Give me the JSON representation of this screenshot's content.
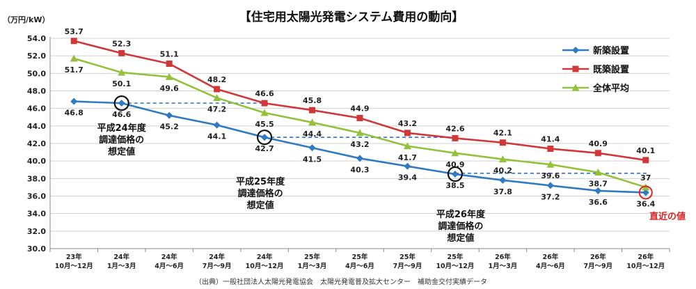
{
  "chart_data": {
    "type": "line",
    "title": "【住宅用太陽光発電システム費用の動向】",
    "ylabel": "（万円/kW）",
    "ylim": [
      30.0,
      54.0
    ],
    "ytick_step": 2.0,
    "grid": true,
    "legend_position": "top-right",
    "categories": [
      [
        "23年",
        "10月～12月"
      ],
      [
        "24年",
        "1月～3月"
      ],
      [
        "24年",
        "4月～6月"
      ],
      [
        "24年",
        "7月～9月"
      ],
      [
        "24年",
        "10月～12月"
      ],
      [
        "25年",
        "1月～3月"
      ],
      [
        "25年",
        "4月～6月"
      ],
      [
        "25年",
        "7月～9月"
      ],
      [
        "25年",
        "10月～12月"
      ],
      [
        "26年",
        "1月～3月"
      ],
      [
        "26年",
        "4月～6月"
      ],
      [
        "26年",
        "7月～9月"
      ],
      [
        "26年",
        "10月～12月"
      ]
    ],
    "series": [
      {
        "name": "新築設置",
        "color": "#2f7ac0",
        "marker": "diamond",
        "values": [
          46.8,
          46.6,
          45.2,
          44.1,
          42.7,
          41.5,
          40.3,
          39.4,
          38.5,
          37.8,
          37.2,
          36.6,
          36.4
        ],
        "labels": [
          "46.8",
          "46.6",
          "45.2",
          "44.1",
          "42.7",
          "41.5",
          "40.3",
          "39.4",
          "38.5",
          "37.8",
          "37.2",
          "36.6",
          "36.4"
        ]
      },
      {
        "name": "既築設置",
        "color": "#d03838",
        "marker": "square",
        "values": [
          53.7,
          52.3,
          51.1,
          48.2,
          46.6,
          45.8,
          44.9,
          43.2,
          42.6,
          42.1,
          41.4,
          40.9,
          40.1
        ],
        "labels": [
          "53.7",
          "52.3",
          "51.1",
          "48.2",
          "46.6",
          "45.8",
          "44.9",
          "43.2",
          "42.6",
          "42.1",
          "41.4",
          "40.9",
          "40.1"
        ]
      },
      {
        "name": "全体平均",
        "color": "#93c13a",
        "marker": "triangle",
        "values": [
          51.7,
          50.1,
          49.6,
          47.2,
          45.5,
          44.4,
          43.2,
          41.7,
          40.9,
          40.2,
          39.6,
          38.7,
          37.0
        ],
        "labels": [
          "51.7",
          "50.1",
          "49.6",
          "47.2",
          "45.5",
          "44.4",
          "43.2",
          "41.7",
          "40.9",
          "40.2",
          "39.6",
          "38.7",
          "37"
        ]
      }
    ],
    "annotations": [
      {
        "text_lines": [
          "平成24年度",
          "調達価格の",
          "想定値"
        ],
        "series": 0,
        "index": 1,
        "reference_value": 46.6,
        "line_to_index": 4
      },
      {
        "text_lines": [
          "平成25年度",
          "調達価格の",
          "想定値"
        ],
        "series": 0,
        "index": 4,
        "reference_value": 42.7,
        "line_to_index": 8
      },
      {
        "text_lines": [
          "平成26年度",
          "調達価格の",
          "想定値"
        ],
        "series": 0,
        "index": 8,
        "reference_value": 38.6,
        "line_to_index": 12
      }
    ],
    "latest_note": "直近の値",
    "source": "（出典）一般社団法人太陽光発電協会　太陽光発電普及拡大センター　補助金交付実績データ"
  }
}
